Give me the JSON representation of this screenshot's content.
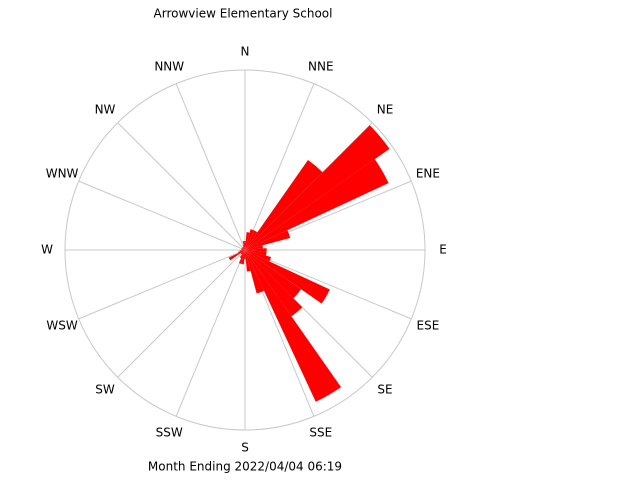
{
  "chart_data": {
    "type": "windrose",
    "title": "Arrowview Elementary School",
    "subtitle": "Month Ending 2022/04/04 06:19",
    "direction_labels": [
      "N",
      "NNE",
      "NE",
      "ENE",
      "E",
      "ESE",
      "SE",
      "SSE",
      "S",
      "SSW",
      "SW",
      "WSW",
      "W",
      "WNW",
      "NW",
      "NNW"
    ],
    "x": [
      0,
      10,
      20,
      30,
      40,
      50,
      60,
      70,
      80,
      90,
      100,
      110,
      120,
      130,
      140,
      150,
      160,
      170,
      180,
      190,
      200,
      210,
      220,
      230,
      240,
      250,
      260,
      270,
      280,
      290,
      300,
      310,
      320,
      330,
      340,
      350
    ],
    "values": [
      5,
      10,
      12,
      12,
      61,
      98,
      88,
      26,
      10,
      12,
      12,
      15,
      52,
      38,
      45,
      93,
      25,
      12,
      5,
      8,
      8,
      5,
      3,
      3,
      10,
      4,
      3,
      2,
      2,
      2,
      2,
      2,
      2,
      2,
      3,
      5
    ],
    "rlim": [
      0,
      100
    ],
    "color": "#ff0000"
  }
}
